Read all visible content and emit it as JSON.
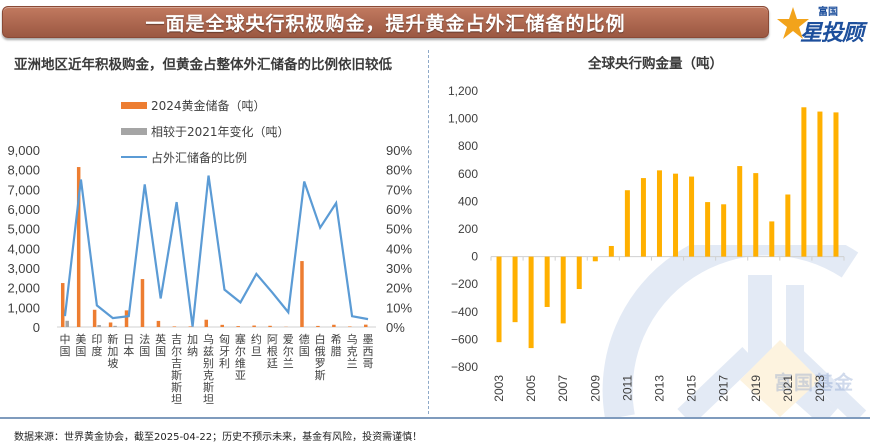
{
  "banner": {
    "title": "一面是全球央行积极购金，提升黄金占外汇储备的比例"
  },
  "logo": {
    "top": "富国",
    "main": "星投顾"
  },
  "watermark": "富国基金",
  "footer": "数据来源：世界黄金协会，截至2025-04-22；历史不预示未来，基金有风险，投资需谨慎！",
  "colors": {
    "orange": "#ED7D31",
    "gray": "#A5A5A5",
    "blue": "#5B9BD5",
    "gold": "#FFB000"
  },
  "chart_data": [
    {
      "type": "bar",
      "title": "亚洲地区近年积极购金，但黄金占整体外汇储备的比例依旧较低",
      "categories": [
        "中国",
        "美国",
        "印度",
        "新加坡",
        "日本",
        "法国",
        "英国",
        "吉尔吉斯斯坦",
        "加纳",
        "乌兹别克斯坦",
        "匈牙利",
        "塞尔维亚",
        "约旦",
        "阿根廷",
        "爱尔兰",
        "德国",
        "白俄罗斯",
        "希腊",
        "乌克兰",
        "墨西哥"
      ],
      "series": [
        {
          "name": "2024黄金储备（吨）",
          "kind": "bar",
          "axis": "left",
          "color": "#ED7D31",
          "values": [
            2235,
            8133,
            876,
            230,
            846,
            2437,
            310,
            30,
            30,
            370,
            110,
            45,
            75,
            62,
            12,
            3352,
            55,
            114,
            28,
            120
          ]
        },
        {
          "name": "相较于2021年变化（吨）",
          "kind": "bar",
          "axis": "left",
          "color": "#A5A5A5",
          "values": [
            316,
            0,
            100,
            60,
            0,
            0,
            0,
            0,
            0,
            0,
            0,
            0,
            0,
            0,
            0,
            0,
            0,
            0,
            0,
            0
          ]
        },
        {
          "name": "占外汇储备的比例",
          "kind": "line",
          "axis": "right",
          "color": "#5B9BD5",
          "values": [
            5.5,
            75,
            11,
            4.5,
            5.5,
            72.5,
            14.5,
            63.5,
            0.2,
            77,
            19,
            12.5,
            27,
            17.5,
            7.5,
            74,
            50.5,
            63,
            5.5,
            4
          ]
        }
      ],
      "yleft": {
        "ylim": [
          0,
          9000
        ],
        "ticks": [
          "0",
          "1,000",
          "2,000",
          "3,000",
          "4,000",
          "5,000",
          "6,000",
          "7,000",
          "8,000",
          "9,000"
        ]
      },
      "yright": {
        "ylim": [
          0,
          90
        ],
        "ticks": [
          "0%",
          "10%",
          "20%",
          "30%",
          "40%",
          "50%",
          "60%",
          "70%",
          "80%",
          "90%"
        ]
      },
      "legend": "top-center",
      "grid": false
    },
    {
      "type": "bar",
      "title": "全球央行购金量（吨）",
      "categories": [
        "2003",
        "2004",
        "2005",
        "2006",
        "2007",
        "2008",
        "2009",
        "2010",
        "2011",
        "2012",
        "2013",
        "2014",
        "2015",
        "2016",
        "2017",
        "2018",
        "2019",
        "2020",
        "2021",
        "2022",
        "2023",
        "2024"
      ],
      "xtick_labels": [
        "2003",
        "2005",
        "2007",
        "2009",
        "2011",
        "2013",
        "2015",
        "2017",
        "2019",
        "2021",
        "2023"
      ],
      "values": [
        -620,
        -475,
        -663,
        -365,
        -484,
        -235,
        -34,
        77,
        481,
        569,
        625,
        601,
        580,
        395,
        379,
        656,
        605,
        255,
        450,
        1082,
        1051,
        1045
      ],
      "color": "#FFB000",
      "ylim": [
        -800,
        1200
      ],
      "yticks": [
        "-800",
        "-600",
        "-400",
        "-200",
        "0",
        "200",
        "400",
        "600",
        "800",
        "1,000",
        "1,200"
      ],
      "grid": false
    }
  ]
}
